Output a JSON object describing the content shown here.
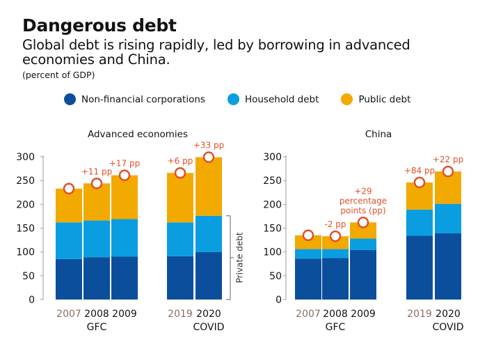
{
  "title": "Dangerous debt",
  "subtitle": "Global debt is rising rapidly, led by borrowing in advanced economies and China.",
  "units": "(percent of GDP)",
  "colors": {
    "nonfin": "#0b4f9c",
    "household": "#0a9ee0",
    "public": "#f2a900",
    "annotation": "#e1502a",
    "pre_year": "#8a6f60"
  },
  "legend": [
    {
      "label": "Non-financial corporations",
      "color": "#0b4f9c"
    },
    {
      "label": "Household debt",
      "color": "#0a9ee0"
    },
    {
      "label": "Public debt",
      "color": "#f2a900"
    }
  ],
  "chart_data": [
    {
      "type": "bar",
      "stacked": true,
      "title": "Advanced economies",
      "ylim": [
        0,
        300
      ],
      "yticks": [
        "0",
        "50",
        "100",
        "150",
        "200",
        "250",
        "300"
      ],
      "categories": [
        "2007",
        "2008",
        "2009",
        "2019",
        "2020"
      ],
      "category_sublabels": [
        "",
        "GFC",
        "",
        "",
        "COVID"
      ],
      "series": [
        {
          "name": "Non-financial corporations",
          "values": [
            85,
            89,
            90,
            91,
            100
          ]
        },
        {
          "name": "Household debt",
          "values": [
            77,
            77,
            79,
            71,
            76
          ]
        },
        {
          "name": "Public debt",
          "values": [
            71,
            78,
            92,
            104,
            123
          ]
        }
      ],
      "annotations": [
        "",
        "+11 pp",
        "+17 pp",
        "+6 pp",
        "+33 pp"
      ],
      "bracket_label": "Private debt"
    },
    {
      "type": "bar",
      "stacked": true,
      "title": "China",
      "ylim": [
        0,
        300
      ],
      "yticks": [
        "0",
        "50",
        "100",
        "150",
        "200",
        "250",
        "300"
      ],
      "categories": [
        "2007",
        "2008",
        "2009",
        "2019",
        "2020"
      ],
      "category_sublabels": [
        "",
        "GFC",
        "",
        "",
        "COVID"
      ],
      "series": [
        {
          "name": "Non-financial corporations",
          "values": [
            86,
            87,
            104,
            134,
            139
          ]
        },
        {
          "name": "Household debt",
          "values": [
            20,
            19,
            24,
            55,
            62
          ]
        },
        {
          "name": "Public debt",
          "values": [
            29,
            27,
            34,
            57,
            68
          ]
        }
      ],
      "annotations": [
        "",
        "-2 pp",
        "+29\npercentage\npoints (pp)",
        "+84 pp",
        "+22 pp"
      ]
    }
  ]
}
